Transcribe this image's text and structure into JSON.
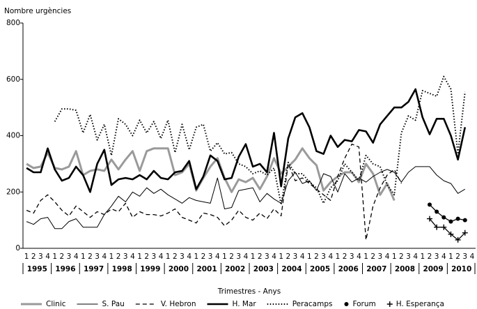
{
  "chart_data": {
    "type": "line",
    "y_label": "Nombre urgències",
    "x_label": "Trimestres - Anys",
    "categories": [
      "1",
      "2",
      "3",
      "4",
      "1",
      "2",
      "3",
      "4",
      "1",
      "2",
      "3",
      "4",
      "1",
      "2",
      "3",
      "4",
      "1",
      "2",
      "3",
      "4",
      "1",
      "2",
      "3",
      "4",
      "1",
      "2",
      "3",
      "4",
      "1",
      "2",
      "3",
      "4",
      "1",
      "2",
      "3",
      "4",
      "1",
      "2",
      "3",
      "4",
      "1",
      "2",
      "3",
      "4",
      "1",
      "2",
      "3",
      "4",
      "1",
      "2",
      "3",
      "4",
      "1",
      "2",
      "3",
      "4",
      "1",
      "2",
      "3",
      "4",
      "1",
      "2",
      "3",
      "4"
    ],
    "years": [
      "1995",
      "1996",
      "1997",
      "1998",
      "1999",
      "2000",
      "2001",
      "2002",
      "2003",
      "2004",
      "2005",
      "2006",
      "2007",
      "2008",
      "2009",
      "2010"
    ],
    "ylim": [
      0,
      800
    ],
    "yticks": [
      0,
      200,
      400,
      600,
      800
    ],
    "grid": false,
    "series": [
      {
        "name": "Clinic",
        "color": "#9a9a9a",
        "style": "solid",
        "width": 3,
        "marker": "none",
        "values": [
          300,
          285,
          290,
          340,
          285,
          280,
          290,
          345,
          260,
          275,
          280,
          275,
          315,
          280,
          315,
          345,
          275,
          345,
          355,
          355,
          355,
          260,
          270,
          300,
          205,
          250,
          290,
          320,
          250,
          200,
          245,
          235,
          250,
          210,
          255,
          320,
          265,
          290,
          315,
          355,
          320,
          295,
          205,
          235,
          255,
          270,
          270,
          235,
          300,
          265,
          190,
          230,
          170,
          null,
          null,
          null,
          null,
          null,
          null,
          null,
          null,
          null,
          null,
          null
        ]
      },
      {
        "name": "S. Pau",
        "color": "#000000",
        "style": "solid",
        "width": 1,
        "marker": "none",
        "values": [
          95,
          85,
          105,
          110,
          70,
          70,
          95,
          105,
          75,
          75,
          75,
          120,
          150,
          185,
          165,
          200,
          185,
          215,
          195,
          210,
          190,
          175,
          160,
          180,
          170,
          165,
          160,
          250,
          140,
          145,
          205,
          210,
          215,
          165,
          195,
          175,
          160,
          240,
          270,
          230,
          240,
          205,
          265,
          255,
          200,
          265,
          235,
          250,
          235,
          255,
          270,
          280,
          270,
          235,
          270,
          290,
          290,
          290,
          260,
          240,
          230,
          195,
          210,
          null
        ]
      },
      {
        "name": "V. Hebron",
        "color": "#000000",
        "style": "dashed",
        "width": 1.3,
        "marker": "none",
        "values": [
          135,
          125,
          170,
          190,
          165,
          135,
          115,
          150,
          130,
          110,
          130,
          120,
          140,
          130,
          160,
          110,
          130,
          120,
          120,
          115,
          125,
          140,
          110,
          100,
          90,
          125,
          120,
          110,
          80,
          100,
          135,
          110,
          100,
          125,
          105,
          140,
          115,
          300,
          240,
          250,
          230,
          210,
          190,
          170,
          255,
          320,
          370,
          360,
          30,
          150,
          215,
          260,
          280,
          230,
          null,
          null,
          null,
          null,
          null,
          null,
          null,
          null,
          null,
          null
        ]
      },
      {
        "name": "H. Mar",
        "color": "#000000",
        "style": "solid",
        "width": 2.6,
        "marker": "none",
        "values": [
          285,
          270,
          270,
          355,
          280,
          240,
          250,
          290,
          260,
          200,
          300,
          350,
          225,
          245,
          250,
          245,
          260,
          245,
          275,
          250,
          245,
          270,
          275,
          310,
          210,
          255,
          330,
          310,
          245,
          250,
          325,
          370,
          290,
          300,
          270,
          410,
          220,
          390,
          465,
          480,
          430,
          345,
          335,
          400,
          360,
          385,
          380,
          420,
          415,
          375,
          440,
          470,
          500,
          500,
          520,
          565,
          465,
          405,
          460,
          460,
          400,
          315,
          430,
          null
        ]
      },
      {
        "name": "Peracamps",
        "color": "#000000",
        "style": "dotted",
        "width": 2,
        "marker": "none",
        "values": [
          null,
          null,
          null,
          null,
          450,
          495,
          495,
          490,
          410,
          475,
          385,
          440,
          330,
          460,
          440,
          400,
          455,
          410,
          450,
          390,
          455,
          340,
          440,
          350,
          430,
          440,
          345,
          375,
          335,
          340,
          300,
          290,
          265,
          275,
          260,
          285,
          155,
          305,
          265,
          265,
          235,
          215,
          160,
          215,
          240,
          300,
          270,
          240,
          330,
          300,
          290,
          225,
          190,
          410,
          470,
          455,
          560,
          550,
          540,
          610,
          565,
          335,
          555,
          null
        ]
      },
      {
        "name": "Forum",
        "color": "#000000",
        "style": "solid",
        "width": 1.3,
        "marker": "circle",
        "values": [
          null,
          null,
          null,
          null,
          null,
          null,
          null,
          null,
          null,
          null,
          null,
          null,
          null,
          null,
          null,
          null,
          null,
          null,
          null,
          null,
          null,
          null,
          null,
          null,
          null,
          null,
          null,
          null,
          null,
          null,
          null,
          null,
          null,
          null,
          null,
          null,
          null,
          null,
          null,
          null,
          null,
          null,
          null,
          null,
          null,
          null,
          null,
          null,
          null,
          null,
          null,
          null,
          null,
          null,
          null,
          null,
          null,
          155,
          130,
          110,
          95,
          105,
          100,
          null
        ]
      },
      {
        "name": "H. Esperança",
        "color": "#000000",
        "style": "solid",
        "width": 1.3,
        "marker": "plus",
        "values": [
          null,
          null,
          null,
          null,
          null,
          null,
          null,
          null,
          null,
          null,
          null,
          null,
          null,
          null,
          null,
          null,
          null,
          null,
          null,
          null,
          null,
          null,
          null,
          null,
          null,
          null,
          null,
          null,
          null,
          null,
          null,
          null,
          null,
          null,
          null,
          null,
          null,
          null,
          null,
          null,
          null,
          null,
          null,
          null,
          null,
          null,
          null,
          null,
          null,
          null,
          null,
          null,
          null,
          null,
          null,
          null,
          null,
          105,
          75,
          75,
          50,
          30,
          55,
          null
        ]
      }
    ]
  }
}
